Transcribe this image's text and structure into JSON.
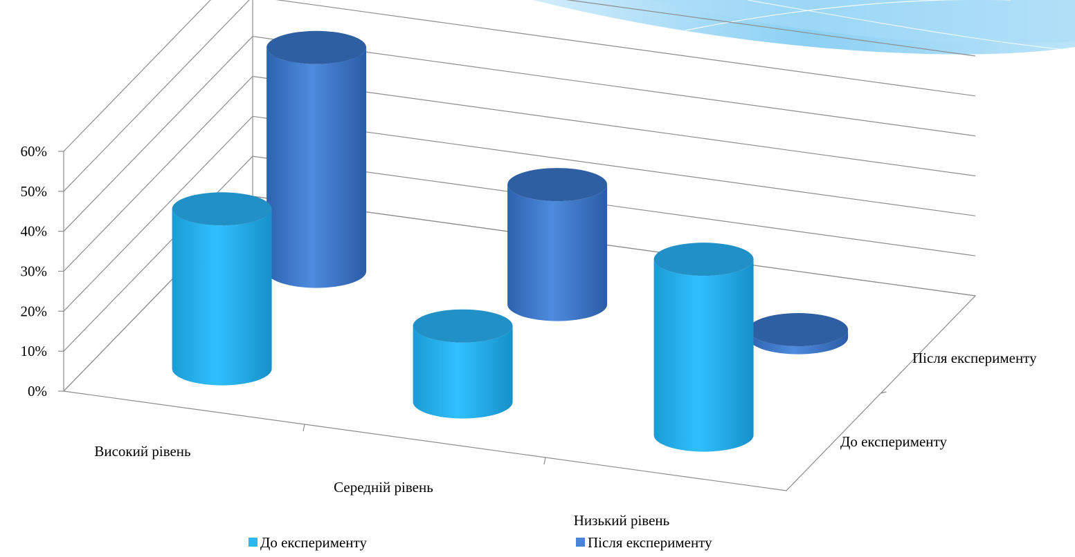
{
  "chart_data": {
    "type": "bar",
    "subtype": "3d-cylinder",
    "title": "",
    "categories": [
      "Високий рівень",
      "Середній рівень",
      "Низький рівень"
    ],
    "series": [
      {
        "name": "До експерименту",
        "values": [
          0.4,
          0.19,
          0.44
        ],
        "color": "#2BB8F4"
      },
      {
        "name": "Після експерименту",
        "values": [
          0.56,
          0.3,
          0.02
        ],
        "color": "#4A84D6"
      }
    ],
    "depth_labels": [
      "Після експерименту",
      "До експерименту"
    ],
    "y_ticks": [
      "0%",
      "10%",
      "20%",
      "30%",
      "40%",
      "50%",
      "60%"
    ],
    "ylim": [
      0,
      0.6
    ],
    "legend_position": "bottom",
    "grid": true
  },
  "colors": {
    "swoosh_light": "#A8DCF7",
    "swoosh_dark": "#5EBDF0",
    "grid": "#8C8C8C"
  }
}
